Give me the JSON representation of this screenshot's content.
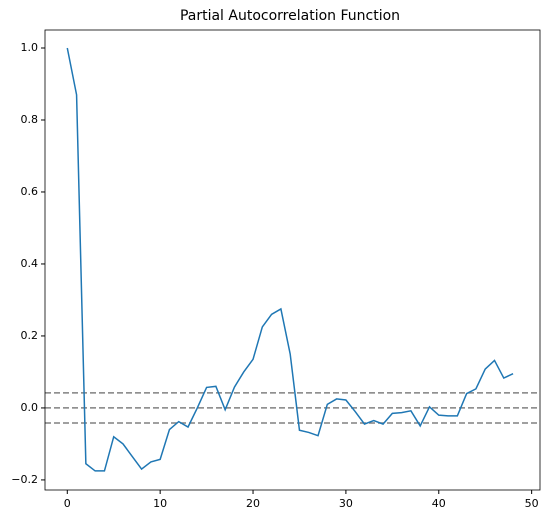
{
  "chart_data": {
    "type": "line",
    "title": "Partial Autocorrelation Function",
    "x": [
      0,
      1,
      2,
      3,
      4,
      5,
      6,
      7,
      8,
      9,
      10,
      11,
      12,
      13,
      14,
      15,
      16,
      17,
      18,
      19,
      20,
      21,
      22,
      23,
      24,
      25,
      26,
      27,
      28,
      29,
      30,
      31,
      32,
      33,
      34,
      35,
      36,
      37,
      38,
      39,
      40,
      41,
      42,
      43,
      44,
      45,
      46,
      47,
      48
    ],
    "series": [
      {
        "color": "#1f77b4",
        "values": [
          1.0,
          0.87,
          -0.155,
          -0.175,
          -0.175,
          -0.08,
          -0.1,
          -0.135,
          -0.17,
          -0.15,
          -0.143,
          -0.06,
          -0.038,
          -0.053,
          0.0,
          0.057,
          0.06,
          -0.005,
          0.058,
          0.1,
          0.135,
          0.225,
          0.26,
          0.275,
          0.15,
          -0.062,
          -0.068,
          -0.077,
          0.01,
          0.025,
          0.022,
          -0.01,
          -0.045,
          -0.035,
          -0.045,
          -0.015,
          -0.013,
          -0.008,
          -0.05,
          0.003,
          -0.02,
          -0.022,
          -0.022,
          0.04,
          0.053,
          0.108,
          0.132,
          0.083,
          0.095
        ]
      }
    ],
    "reference_lines": [
      0.042,
      0,
      -0.042
    ],
    "reference_color": "#808080",
    "xlim": [
      -2.4,
      50.9
    ],
    "xticks": [
      0,
      10,
      20,
      30,
      40,
      50
    ],
    "ylim": [
      -0.228,
      1.05
    ],
    "yticks": [
      {
        "value": -0.2,
        "label": "−0.2"
      },
      {
        "value": 0,
        "label": "0.0"
      },
      0.2,
      0.4,
      0.6,
      {
        "value": 1.0,
        "label": "1.0"
      },
      0.8
    ]
  }
}
